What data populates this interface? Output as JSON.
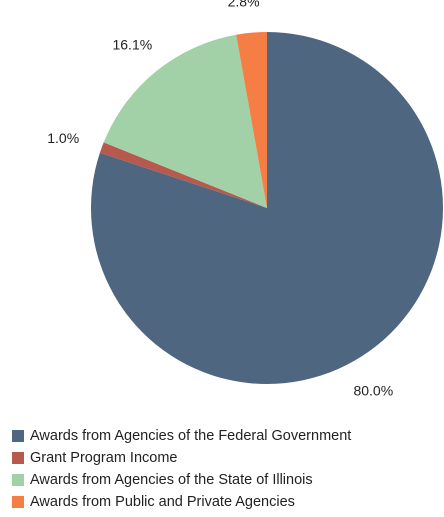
{
  "chart_data": {
    "type": "pie",
    "title": "",
    "start_angle_deg": 0,
    "direction": "clockwise",
    "legend_position": "bottom-left",
    "slices": [
      {
        "label": "Awards from Agencies of the Federal Government",
        "value": 80.0,
        "display": "80.0%",
        "color": "#4f6680"
      },
      {
        "label": "Grant Program Income",
        "value": 1.0,
        "display": "1.0%",
        "color": "#b55a4c"
      },
      {
        "label": "Awards from Agencies of the State of Illinois",
        "value": 16.1,
        "display": "16.1%",
        "color": "#a2d1a8"
      },
      {
        "label": "Awards from Public and Private Agencies",
        "value": 2.8,
        "display": "2.8%",
        "color": "#f57e44"
      }
    ]
  }
}
